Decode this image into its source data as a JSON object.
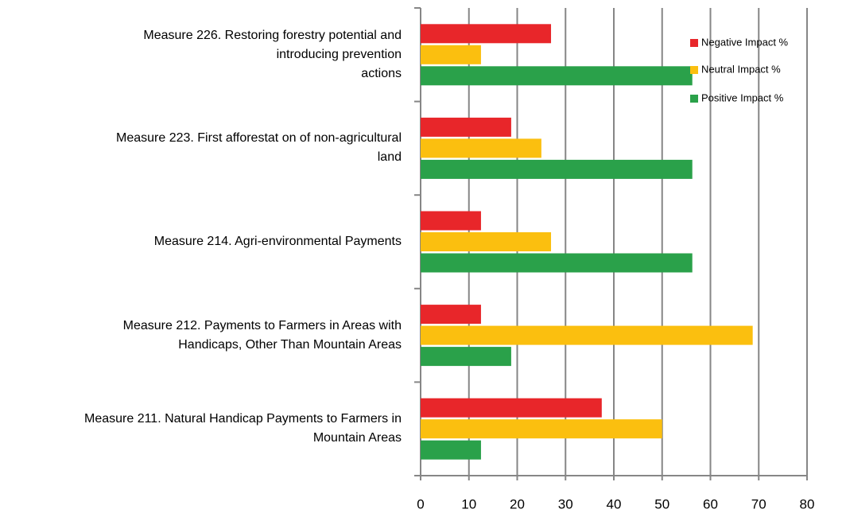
{
  "chart_data": {
    "type": "barh",
    "categories": [
      "Measure  226. Restoring forestry potential and\nintroducing prevention\nactions",
      "Measure 223. First afforestat on of non-agricultural\nland",
      "Measure 214. Agri-environmental Payments",
      "Measure 212. Payments to Farmers in Areas with\nHandicaps, Other Than Mountain Areas",
      "Measure 211. Natural Handicap Payments to Farmers in\nMountain Areas"
    ],
    "series": [
      {
        "name": "Negative Impact %",
        "color": "#e8262a",
        "values": [
          27,
          18.75,
          12.5,
          12.5,
          37.5
        ]
      },
      {
        "name": "Neutral Impact %",
        "color": "#fbbf0f",
        "values": [
          12.5,
          25,
          27,
          68.75,
          50
        ]
      },
      {
        "name": "Positive Impact %",
        "color": "#2aa14a",
        "values": [
          56.25,
          56.25,
          56.25,
          18.75,
          12.5
        ]
      }
    ],
    "xlim": [
      0,
      80
    ],
    "xticks": [
      0,
      10,
      20,
      30,
      40,
      50,
      60,
      70,
      80
    ],
    "grid": true,
    "legend": "top-right"
  }
}
